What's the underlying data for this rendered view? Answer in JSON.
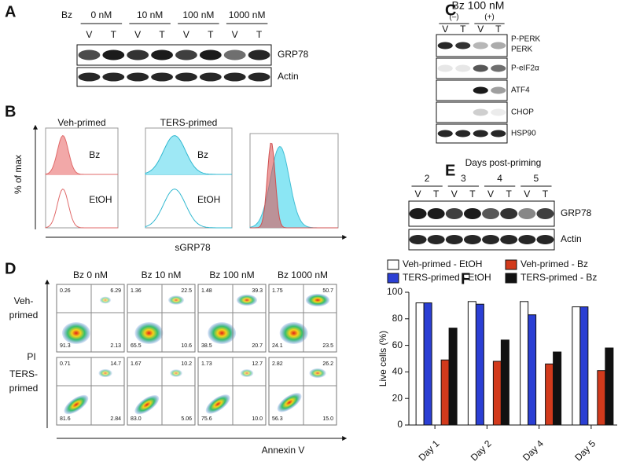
{
  "panel_labels": [
    "A",
    "B",
    "C",
    "D",
    "E",
    "F"
  ],
  "panel_a": {
    "treatment": "Bz",
    "doses": [
      "0 nM",
      "10 nM",
      "100 nM",
      "1000 nM"
    ],
    "lanes": [
      "V",
      "T"
    ],
    "bands": [
      "GRP78",
      "Actin"
    ]
  },
  "panel_b": {
    "columns": [
      "Veh-primed",
      "TERS-primed"
    ],
    "rows": [
      "Bz",
      "EtOH"
    ],
    "y_label": "% of max",
    "x_label": "sGRP78"
  },
  "panel_c": {
    "title": "Bz 100 nM",
    "groups": [
      "(–)",
      "(+)"
    ],
    "lanes": [
      "V",
      "T"
    ],
    "bands": [
      "P-PERK",
      "PERK",
      "P-eIF2α",
      "ATF4",
      "CHOP",
      "HSP90"
    ]
  },
  "panel_d": {
    "columns": [
      "Bz  0 nM",
      "Bz 10 nM",
      "Bz 100 nM",
      "Bz 1000 nM"
    ],
    "rows": [
      [
        "Veh-",
        "primed"
      ],
      [
        "TERS-",
        "primed"
      ]
    ],
    "y_label": "PI",
    "x_label": "Annexin V",
    "quadrants": [
      [
        [
          "0.26",
          "6.29",
          "91.3",
          "2.13"
        ],
        [
          "1.36",
          "22.5",
          "65.5",
          "10.6"
        ],
        [
          "1.48",
          "39.3",
          "38.5",
          "20.7"
        ],
        [
          "1.75",
          "50.7",
          "24.1",
          "23.5"
        ]
      ],
      [
        [
          "0.71",
          "14.7",
          "81.6",
          "2.84"
        ],
        [
          "1.67",
          "10.2",
          "83.0",
          "5.06"
        ],
        [
          "1.73",
          "12.7",
          "75.6",
          "10.0"
        ],
        [
          "2.82",
          "26.2",
          "56.3",
          "15.0"
        ]
      ]
    ]
  },
  "panel_e": {
    "title": "Days post-priming",
    "days": [
      "2",
      "3",
      "4",
      "5"
    ],
    "lanes": [
      "V",
      "T"
    ],
    "bands": [
      "GRP78",
      "Actin"
    ]
  },
  "chart_data": {
    "type": "bar",
    "y_label": "Live cells (%)",
    "categories": [
      "Day 1",
      "Day 2",
      "Day 4",
      "Day 5"
    ],
    "series": [
      {
        "name": "Veh-primed - EtOH",
        "color": "#ffffff",
        "values": [
          92,
          93,
          93,
          89
        ]
      },
      {
        "name": "TERS-primed - EtOH",
        "color": "#2b3fd4",
        "values": [
          92,
          91,
          83,
          89
        ]
      },
      {
        "name": "Veh-primed - Bz",
        "color": "#d23a1c",
        "values": [
          49,
          48,
          46,
          41
        ]
      },
      {
        "name": "TERS-primed - Bz",
        "color": "#111111",
        "values": [
          73,
          64,
          55,
          58
        ]
      }
    ],
    "ylim": [
      0,
      100
    ],
    "yticks": [
      0,
      20,
      40,
      60,
      80,
      100
    ],
    "grid": false
  }
}
